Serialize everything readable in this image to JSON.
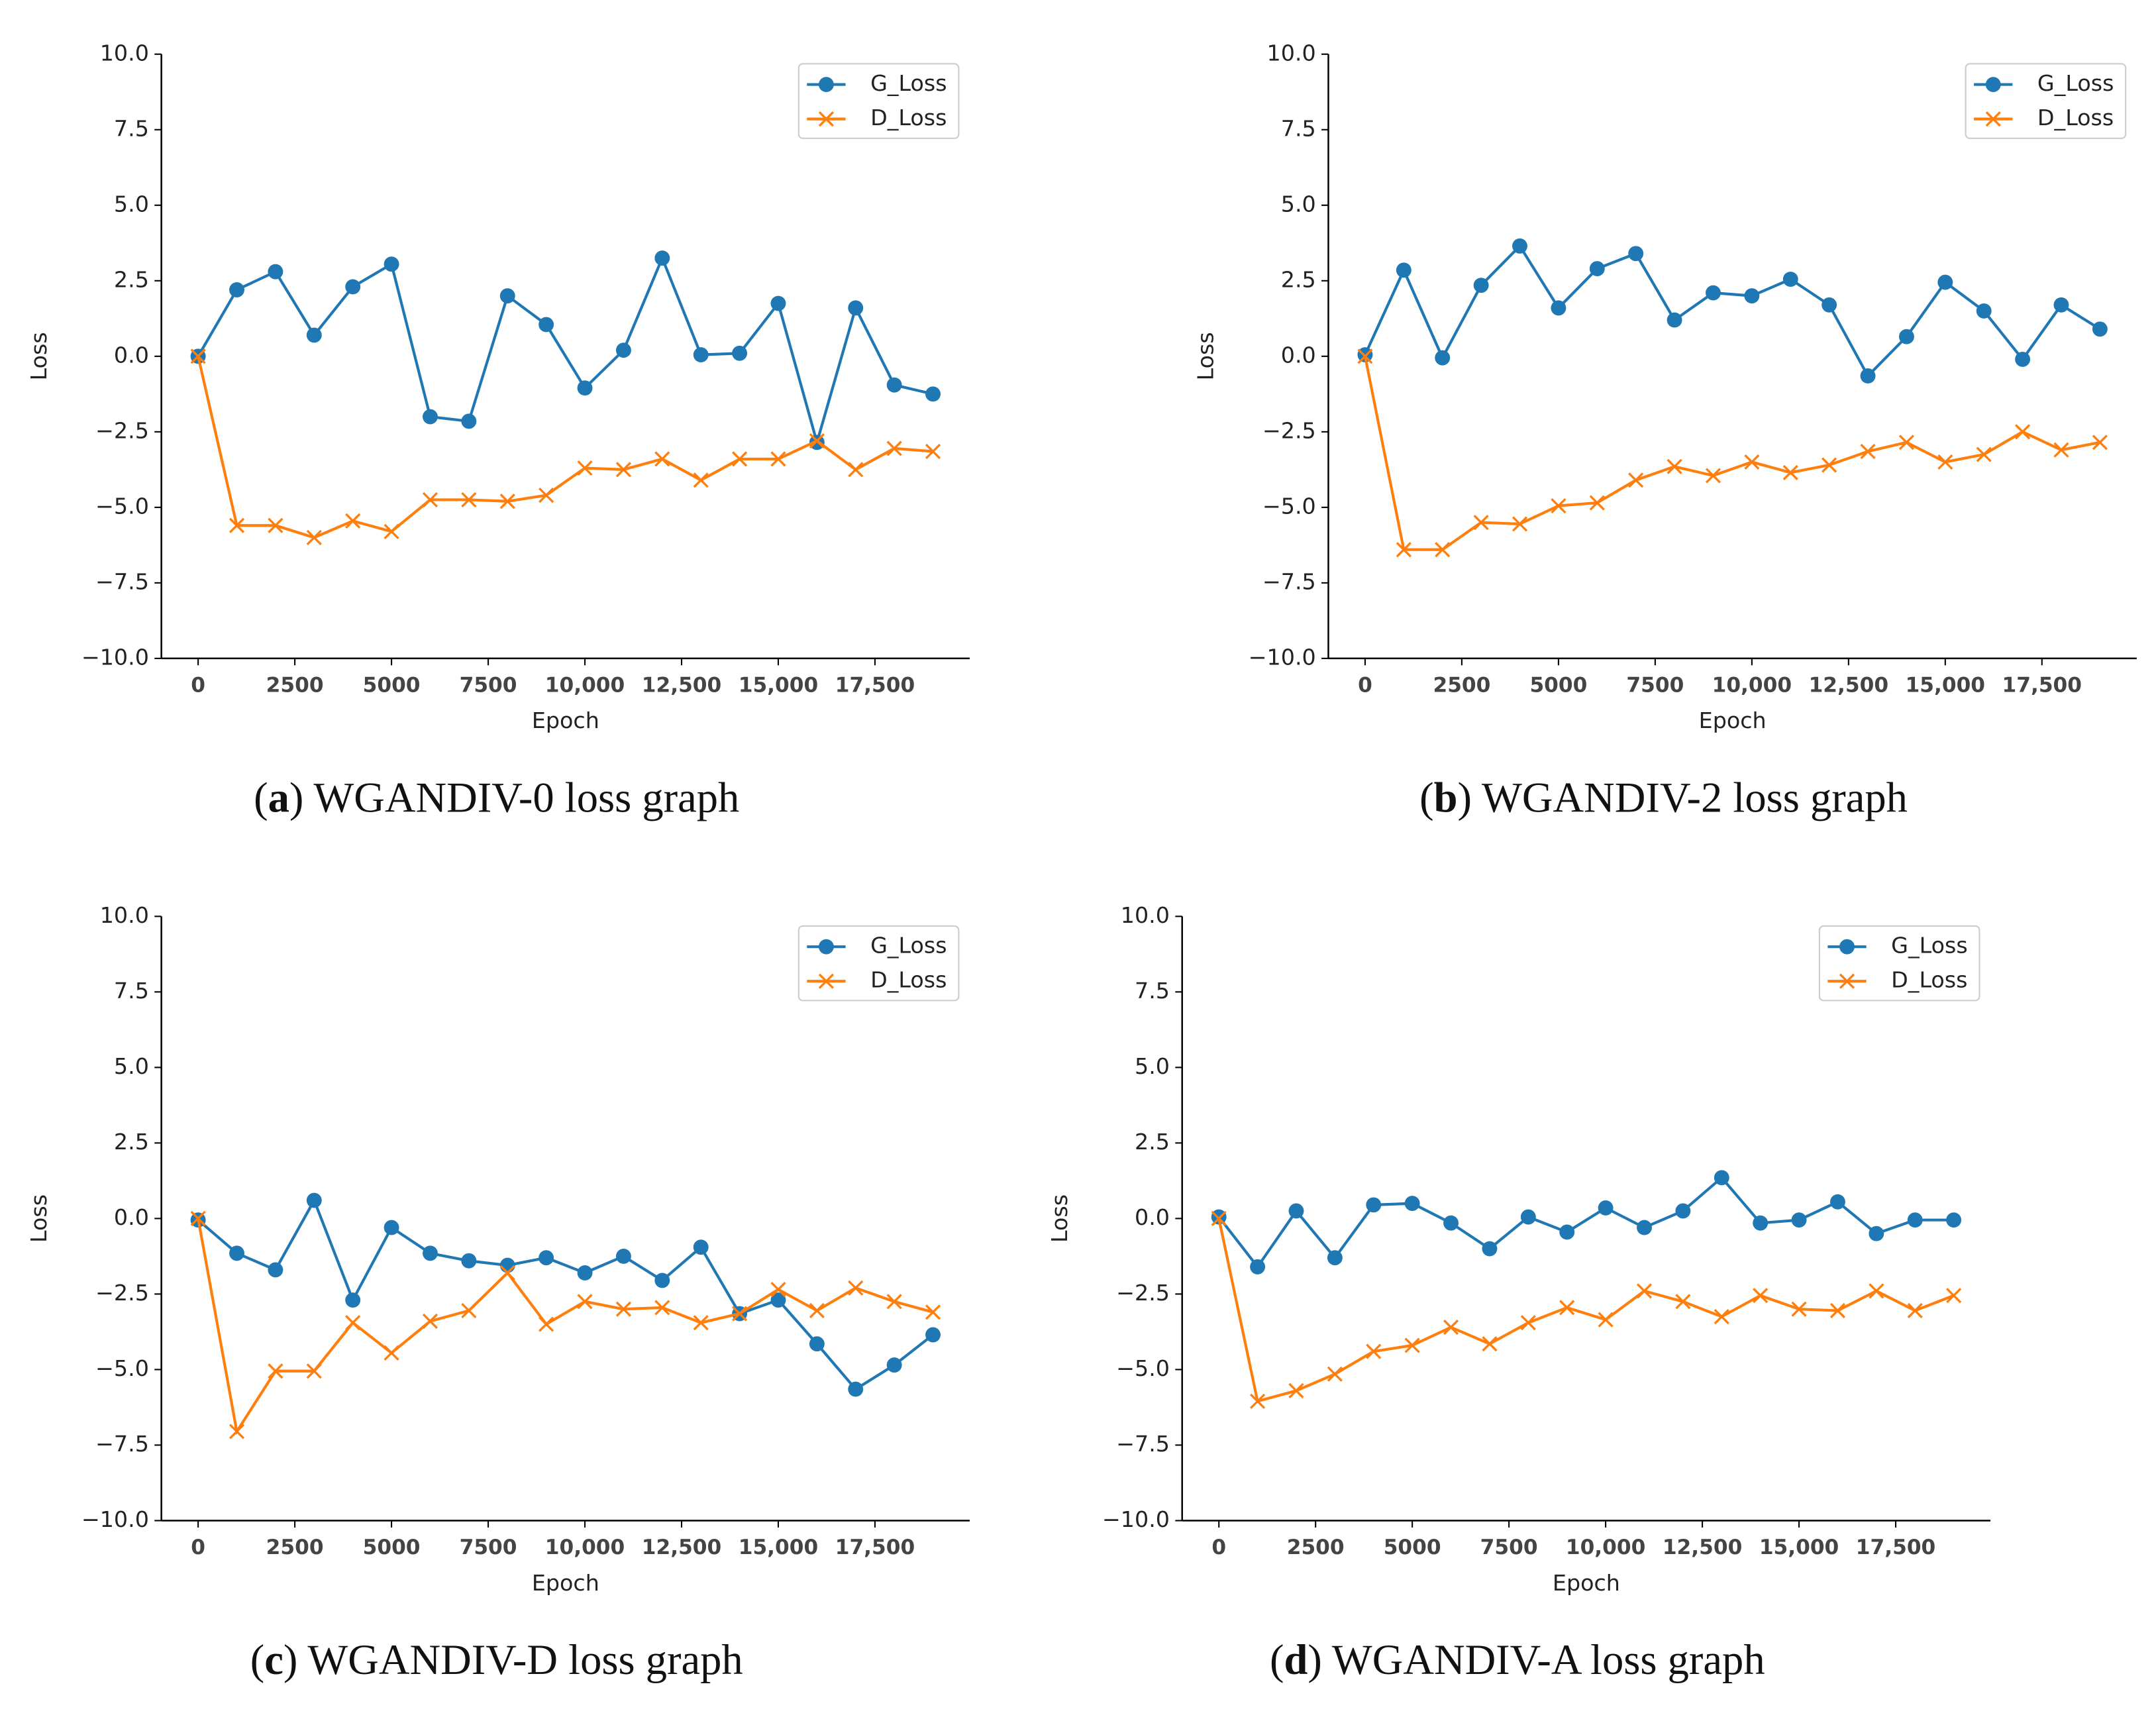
{
  "chart_data": [
    {
      "type": "line",
      "xlabel": "Epoch",
      "ylabel": "Loss",
      "caption": [
        "(",
        "a",
        ") WGANDIV-0 loss graph"
      ],
      "x": [
        0,
        1000,
        2000,
        3000,
        4000,
        5000,
        6000,
        7000,
        8000,
        9000,
        10000,
        11000,
        12000,
        13000,
        14000,
        15000,
        16000,
        17000,
        18000,
        19000
      ],
      "series": [
        {
          "name": "G_Loss",
          "color": "#1f77b4",
          "marker": "o",
          "values": [
            0,
            2.2,
            2.8,
            0.7,
            2.3,
            3.05,
            -2.0,
            -2.15,
            2.0,
            1.05,
            -1.05,
            0.2,
            3.25,
            0.05,
            0.1,
            1.75,
            -2.85,
            1.6,
            -0.95,
            -1.25
          ]
        },
        {
          "name": "D_Loss",
          "color": "#ff7f0e",
          "marker": "x",
          "values": [
            0,
            -5.6,
            -5.6,
            -6.0,
            -5.45,
            -5.8,
            -4.75,
            -4.75,
            -4.8,
            -4.6,
            -3.7,
            -3.75,
            -3.4,
            -4.1,
            -3.4,
            -3.4,
            -2.8,
            -3.75,
            -3.05,
            -3.15
          ]
        }
      ],
      "xlim": [
        -950,
        19950
      ],
      "ylim": [
        -10,
        10
      ],
      "xticks": [
        0,
        2500,
        5000,
        7500,
        {
          "value": 10000,
          "label": "10,000"
        },
        {
          "value": 12500,
          "label": "12,500"
        },
        {
          "value": 15000,
          "label": "15,000"
        },
        {
          "value": 17500,
          "label": "17,500"
        }
      ],
      "yticks": [
        {
          "value": -10,
          "label": "−10.0"
        },
        {
          "value": -7.5,
          "label": "−7.5"
        },
        {
          "value": -5,
          "label": "−5.0"
        },
        {
          "value": -2.5,
          "label": "−2.5"
        },
        {
          "value": 0,
          "label": "0.0"
        },
        2.5,
        {
          "value": 5,
          "label": "5.0"
        },
        7.5,
        {
          "value": 10,
          "label": "10.0"
        }
      ],
      "legend": "upper right"
    },
    {
      "type": "line",
      "xlabel": "Epoch",
      "ylabel": "Loss",
      "caption": [
        "(",
        "b",
        ") WGANDIV-2 loss graph"
      ],
      "x": [
        0,
        1000,
        2000,
        3000,
        4000,
        5000,
        6000,
        7000,
        8000,
        9000,
        10000,
        11000,
        12000,
        13000,
        14000,
        15000,
        16000,
        17000,
        18000,
        19000
      ],
      "series": [
        {
          "name": "G_Loss",
          "color": "#1f77b4",
          "marker": "o",
          "values": [
            0.05,
            2.85,
            -0.05,
            2.35,
            3.65,
            1.6,
            2.9,
            3.4,
            1.2,
            2.1,
            2.0,
            2.55,
            1.7,
            -0.65,
            0.65,
            2.45,
            1.5,
            -0.1,
            1.7,
            0.9
          ]
        },
        {
          "name": "D_Loss",
          "color": "#ff7f0e",
          "marker": "x",
          "values": [
            0,
            -6.4,
            -6.4,
            -5.5,
            -5.55,
            -4.95,
            -4.85,
            -4.1,
            -3.65,
            -3.95,
            -3.5,
            -3.85,
            -3.6,
            -3.15,
            -2.85,
            -3.5,
            -3.25,
            -2.5,
            -3.1,
            -2.85
          ]
        }
      ],
      "xlim": [
        -950,
        19950
      ],
      "ylim": [
        -10,
        10
      ],
      "xticks": [
        0,
        2500,
        5000,
        7500,
        {
          "value": 10000,
          "label": "10,000"
        },
        {
          "value": 12500,
          "label": "12,500"
        },
        {
          "value": 15000,
          "label": "15,000"
        },
        {
          "value": 17500,
          "label": "17,500"
        }
      ],
      "yticks": [
        {
          "value": -10,
          "label": "−10.0"
        },
        {
          "value": -7.5,
          "label": "−7.5"
        },
        {
          "value": -5,
          "label": "−5.0"
        },
        {
          "value": -2.5,
          "label": "−2.5"
        },
        {
          "value": 0,
          "label": "0.0"
        },
        2.5,
        {
          "value": 5,
          "label": "5.0"
        },
        7.5,
        {
          "value": 10,
          "label": "10.0"
        }
      ],
      "legend": "upper right"
    },
    {
      "type": "line",
      "xlabel": "Epoch",
      "ylabel": "Loss",
      "caption": [
        "(",
        "c",
        ") WGANDIV-D loss graph"
      ],
      "x": [
        0,
        1000,
        2000,
        3000,
        4000,
        5000,
        6000,
        7000,
        8000,
        9000,
        10000,
        11000,
        12000,
        13000,
        14000,
        15000,
        16000,
        17000,
        18000,
        19000
      ],
      "series": [
        {
          "name": "G_Loss",
          "color": "#1f77b4",
          "marker": "o",
          "values": [
            -0.05,
            -1.15,
            -1.7,
            0.6,
            -2.7,
            -0.3,
            -1.15,
            -1.4,
            -1.55,
            -1.3,
            -1.8,
            -1.25,
            -2.05,
            -0.95,
            -3.15,
            -2.7,
            -4.15,
            -5.65,
            -4.85,
            -3.85
          ]
        },
        {
          "name": "D_Loss",
          "color": "#ff7f0e",
          "marker": "x",
          "values": [
            0,
            -7.05,
            -5.05,
            -5.05,
            -3.45,
            -4.45,
            -3.4,
            -3.05,
            -1.8,
            -3.5,
            -2.75,
            -3.0,
            -2.95,
            -3.45,
            -3.15,
            -2.35,
            -3.05,
            -2.3,
            -2.75,
            -3.1
          ]
        }
      ],
      "xlim": [
        -950,
        19950
      ],
      "ylim": [
        -10,
        10
      ],
      "xticks": [
        0,
        2500,
        5000,
        7500,
        {
          "value": 10000,
          "label": "10,000"
        },
        {
          "value": 12500,
          "label": "12,500"
        },
        {
          "value": 15000,
          "label": "15,000"
        },
        {
          "value": 17500,
          "label": "17,500"
        }
      ],
      "yticks": [
        {
          "value": -10,
          "label": "−10.0"
        },
        {
          "value": -7.5,
          "label": "−7.5"
        },
        {
          "value": -5,
          "label": "−5.0"
        },
        {
          "value": -2.5,
          "label": "−2.5"
        },
        {
          "value": 0,
          "label": "0.0"
        },
        2.5,
        {
          "value": 5,
          "label": "5.0"
        },
        7.5,
        {
          "value": 10,
          "label": "10.0"
        }
      ],
      "legend": "upper right"
    },
    {
      "type": "line",
      "xlabel": "Epoch",
      "ylabel": "Loss",
      "caption": [
        "(",
        "d",
        ") WGANDIV-A loss graph"
      ],
      "x": [
        0,
        1000,
        2000,
        3000,
        4000,
        5000,
        6000,
        7000,
        8000,
        9000,
        10000,
        11000,
        12000,
        13000,
        14000,
        15000,
        16000,
        17000,
        18000,
        19000
      ],
      "series": [
        {
          "name": "G_Loss",
          "color": "#1f77b4",
          "marker": "o",
          "values": [
            0.05,
            -1.6,
            0.25,
            -1.3,
            0.45,
            0.5,
            -0.15,
            -1.0,
            0.05,
            -0.45,
            0.35,
            -0.3,
            0.25,
            1.35,
            -0.15,
            -0.05,
            0.55,
            -0.5,
            -0.05,
            -0.05
          ]
        },
        {
          "name": "D_Loss",
          "color": "#ff7f0e",
          "marker": "x",
          "values": [
            0,
            -6.05,
            -5.7,
            -5.15,
            -4.4,
            -4.2,
            -3.6,
            -4.15,
            -3.45,
            -2.95,
            -3.35,
            -2.4,
            -2.75,
            -3.25,
            -2.55,
            -3.0,
            -3.05,
            -2.4,
            -3.05,
            -2.55
          ]
        }
      ],
      "xlim": [
        -950,
        19950
      ],
      "ylim": [
        -10,
        10
      ],
      "xticks": [
        0,
        2500,
        5000,
        7500,
        {
          "value": 10000,
          "label": "10,000"
        },
        {
          "value": 12500,
          "label": "12,500"
        },
        {
          "value": 15000,
          "label": "15,000"
        },
        {
          "value": 17500,
          "label": "17,500"
        }
      ],
      "yticks": [
        {
          "value": -10,
          "label": "−10.0"
        },
        {
          "value": -7.5,
          "label": "−7.5"
        },
        {
          "value": -5,
          "label": "−5.0"
        },
        {
          "value": -2.5,
          "label": "−2.5"
        },
        {
          "value": 0,
          "label": "0.0"
        },
        2.5,
        {
          "value": 5,
          "label": "5.0"
        },
        7.5,
        {
          "value": 10,
          "label": "10.0"
        }
      ],
      "legend": "upper right"
    }
  ]
}
